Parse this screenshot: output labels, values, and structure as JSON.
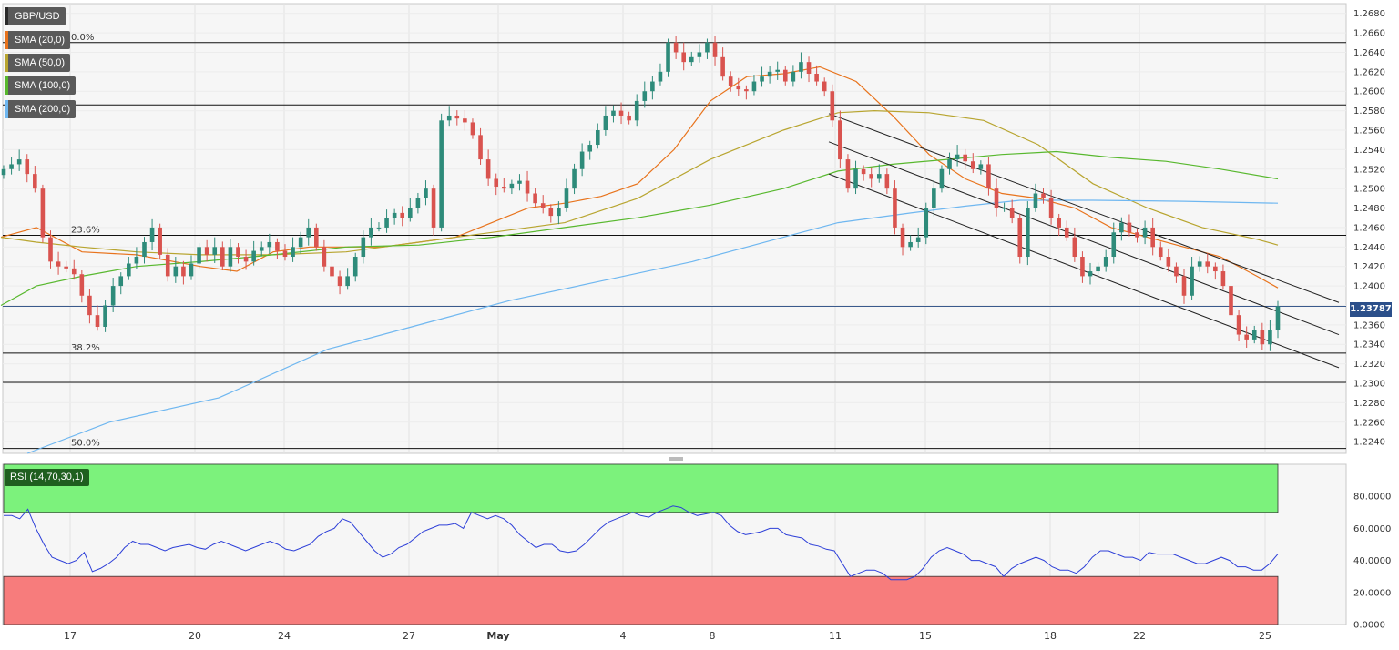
{
  "symbol": "GBP/USD",
  "indicators": [
    {
      "label": "SMA (20,0)",
      "color": "#e8731c"
    },
    {
      "label": "SMA (50,0)",
      "color": "#b8a530"
    },
    {
      "label": "SMA (100,0)",
      "color": "#58b82e"
    },
    {
      "label": "SMA (200,0)",
      "color": "#6fb7f0"
    }
  ],
  "rsi_label": "RSI (14,70,30,1)",
  "current_price": "1.23787",
  "fib_levels": [
    {
      "label": "0.0%",
      "price": 1.265
    },
    {
      "label": "23.6%",
      "price": 1.2452
    },
    {
      "label": "38.2%",
      "price": 1.2331
    },
    {
      "label": "50.0%",
      "price": 1.2233
    }
  ],
  "chart_data": {
    "type": "candlestick",
    "title": "GBP/USD",
    "y_ticks": [
      "1.2680",
      "1.2660",
      "1.2640",
      "1.2620",
      "1.2600",
      "1.2580",
      "1.2560",
      "1.2540",
      "1.2520",
      "1.2500",
      "1.2480",
      "1.2460",
      "1.2440",
      "1.2420",
      "1.2400",
      "1.2380",
      "1.2360",
      "1.2340",
      "1.2320",
      "1.2300",
      "1.2280",
      "1.2260",
      "1.2240"
    ],
    "ylim": [
      1.2228,
      1.269
    ],
    "x_ticks": [
      "17",
      "20",
      "24",
      "27",
      "May",
      "4",
      "8",
      "11",
      "15",
      "18",
      "22",
      "25"
    ],
    "horizontal_lines": [
      1.265,
      1.2586,
      1.2452,
      1.2379,
      1.2331,
      1.2301,
      1.2233
    ],
    "closes": [
      1.252,
      1.2525,
      1.253,
      1.2515,
      1.25,
      1.245,
      1.2425,
      1.242,
      1.2418,
      1.2412,
      1.239,
      1.237,
      1.2358,
      1.238,
      1.24,
      1.241,
      1.2423,
      1.243,
      1.2445,
      1.246,
      1.2432,
      1.241,
      1.242,
      1.241,
      1.2423,
      1.244,
      1.2432,
      1.244,
      1.242,
      1.244,
      1.243,
      1.2425,
      1.2436,
      1.244,
      1.2445,
      1.2436,
      1.243,
      1.244,
      1.245,
      1.246,
      1.244,
      1.242,
      1.241,
      1.24,
      1.241,
      1.243,
      1.245,
      1.246,
      1.246,
      1.247,
      1.2475,
      1.247,
      1.248,
      1.249,
      1.25,
      1.246,
      1.257,
      1.2575,
      1.2572,
      1.2568,
      1.2555,
      1.253,
      1.251,
      1.2502,
      1.25,
      1.2505,
      1.2508,
      1.2495,
      1.2485,
      1.248,
      1.2472,
      1.248,
      1.25,
      1.252,
      1.2538,
      1.2545,
      1.256,
      1.2575,
      1.258,
      1.2575,
      1.257,
      1.259,
      1.26,
      1.261,
      1.262,
      1.265,
      1.264,
      1.263,
      1.2635,
      1.264,
      1.265,
      1.2635,
      1.2615,
      1.2605,
      1.2602,
      1.26,
      1.261,
      1.2615,
      1.262,
      1.2622,
      1.261,
      1.262,
      1.263,
      1.2618,
      1.261,
      1.26,
      1.257,
      1.253,
      1.25,
      1.252,
      1.2515,
      1.251,
      1.2515,
      1.25,
      1.246,
      1.244,
      1.2445,
      1.245,
      1.248,
      1.25,
      1.252,
      1.253,
      1.2535,
      1.2528,
      1.252,
      1.2525,
      1.25,
      1.248,
      1.248,
      1.247,
      1.243,
      1.248,
      1.2495,
      1.249,
      1.247,
      1.246,
      1.245,
      1.243,
      1.241,
      1.2415,
      1.242,
      1.243,
      1.2455,
      1.2465,
      1.2455,
      1.245,
      1.246,
      1.244,
      1.243,
      1.242,
      1.241,
      1.239,
      1.242,
      1.2425,
      1.242,
      1.2415,
      1.24,
      1.237,
      1.235,
      1.2345,
      1.2355,
      1.234,
      1.2355,
      1.2379
    ],
    "sma20": [
      [
        1,
        1.245
      ],
      [
        40,
        1.246
      ],
      [
        90,
        1.2435
      ],
      [
        150,
        1.2432
      ],
      [
        220,
        1.242
      ],
      [
        260,
        1.2415
      ],
      [
        300,
        1.2435
      ],
      [
        340,
        1.244
      ],
      [
        380,
        1.244
      ],
      [
        420,
        1.244
      ],
      [
        460,
        1.2445
      ],
      [
        500,
        1.245
      ],
      [
        540,
        1.2465
      ],
      [
        580,
        1.248
      ],
      [
        620,
        1.2485
      ],
      [
        660,
        1.2492
      ],
      [
        700,
        1.2505
      ],
      [
        740,
        1.254
      ],
      [
        780,
        1.259
      ],
      [
        820,
        1.2615
      ],
      [
        860,
        1.2618
      ],
      [
        900,
        1.2625
      ],
      [
        940,
        1.261
      ],
      [
        980,
        1.2575
      ],
      [
        1020,
        1.2535
      ],
      [
        1060,
        1.251
      ],
      [
        1100,
        1.2495
      ],
      [
        1140,
        1.249
      ],
      [
        1180,
        1.248
      ],
      [
        1220,
        1.246
      ],
      [
        1260,
        1.245
      ],
      [
        1300,
        1.244
      ],
      [
        1340,
        1.243
      ],
      [
        1380,
        1.241
      ],
      [
        1403,
        1.2398
      ]
    ],
    "sma50": [
      [
        1,
        1.245
      ],
      [
        40,
        1.2445
      ],
      [
        90,
        1.244
      ],
      [
        150,
        1.2435
      ],
      [
        220,
        1.2432
      ],
      [
        300,
        1.2432
      ],
      [
        380,
        1.2435
      ],
      [
        460,
        1.2445
      ],
      [
        540,
        1.2455
      ],
      [
        620,
        1.2465
      ],
      [
        700,
        1.249
      ],
      [
        780,
        1.253
      ],
      [
        860,
        1.256
      ],
      [
        920,
        1.2578
      ],
      [
        960,
        1.258
      ],
      [
        1020,
        1.2578
      ],
      [
        1080,
        1.257
      ],
      [
        1140,
        1.2545
      ],
      [
        1200,
        1.2505
      ],
      [
        1260,
        1.248
      ],
      [
        1320,
        1.246
      ],
      [
        1380,
        1.2448
      ],
      [
        1403,
        1.2442
      ]
    ],
    "sma100": [
      [
        1,
        1.238
      ],
      [
        40,
        1.24
      ],
      [
        90,
        1.241
      ],
      [
        150,
        1.242
      ],
      [
        220,
        1.2425
      ],
      [
        300,
        1.2432
      ],
      [
        380,
        1.244
      ],
      [
        460,
        1.2442
      ],
      [
        540,
        1.245
      ],
      [
        620,
        1.246
      ],
      [
        700,
        1.247
      ],
      [
        780,
        1.2483
      ],
      [
        860,
        1.25
      ],
      [
        920,
        1.2518
      ],
      [
        980,
        1.2525
      ],
      [
        1040,
        1.253
      ],
      [
        1100,
        1.2535
      ],
      [
        1160,
        1.2538
      ],
      [
        1220,
        1.2532
      ],
      [
        1280,
        1.2528
      ],
      [
        1340,
        1.252
      ],
      [
        1403,
        1.251
      ]
    ],
    "sma200": [
      [
        30,
        1.2228
      ],
      [
        120,
        1.226
      ],
      [
        240,
        1.2285
      ],
      [
        360,
        1.2335
      ],
      [
        480,
        1.2365
      ],
      [
        560,
        1.2385
      ],
      [
        660,
        1.2405
      ],
      [
        760,
        1.2425
      ],
      [
        860,
        1.245
      ],
      [
        920,
        1.2465
      ],
      [
        1000,
        1.2475
      ],
      [
        1060,
        1.2482
      ],
      [
        1120,
        1.2488
      ],
      [
        1200,
        1.2488
      ],
      [
        1300,
        1.2487
      ],
      [
        1403,
        1.2485
      ]
    ],
    "channel_lines": [
      [
        [
          910,
          1.2577
        ],
        [
          1470,
          1.2383
        ]
      ],
      [
        [
          910,
          1.2548
        ],
        [
          1470,
          1.235
        ]
      ],
      [
        [
          910,
          1.2515
        ],
        [
          1470,
          1.2316
        ]
      ]
    ],
    "rsi": {
      "ylim": [
        0,
        100
      ],
      "y_ticks": [
        "80.0000",
        "60.0000",
        "40.0000",
        "20.0000",
        "0.0000"
      ],
      "overbought": 70,
      "oversold": 30,
      "values": [
        68,
        68,
        66,
        72,
        60,
        50,
        42,
        40,
        38,
        40,
        45,
        33,
        35,
        38,
        42,
        48,
        52,
        50,
        50,
        48,
        46,
        48,
        49,
        50,
        48,
        47,
        50,
        52,
        50,
        48,
        46,
        48,
        50,
        52,
        50,
        47,
        46,
        48,
        50,
        55,
        58,
        60,
        66,
        64,
        58,
        52,
        46,
        42,
        44,
        48,
        50,
        54,
        58,
        60,
        62,
        62,
        63,
        60,
        70,
        68,
        66,
        68,
        66,
        62,
        56,
        52,
        48,
        50,
        50,
        46,
        45,
        46,
        50,
        55,
        60,
        64,
        66,
        68,
        70,
        68,
        67,
        70,
        72,
        74,
        73,
        70,
        68,
        69,
        70,
        68,
        62,
        58,
        56,
        57,
        58,
        60,
        60,
        56,
        55,
        54,
        50,
        49,
        47,
        46,
        38,
        30,
        32,
        34,
        34,
        32,
        28,
        28,
        28,
        30,
        35,
        42,
        46,
        48,
        46,
        44,
        40,
        40,
        38,
        36,
        30,
        35,
        38,
        40,
        42,
        40,
        36,
        34,
        34,
        32,
        36,
        42,
        46,
        46,
        44,
        42,
        42,
        40,
        45,
        44,
        44,
        44,
        42,
        40,
        38,
        38,
        40,
        42,
        40,
        36,
        36,
        34,
        34,
        38,
        44
      ]
    }
  }
}
